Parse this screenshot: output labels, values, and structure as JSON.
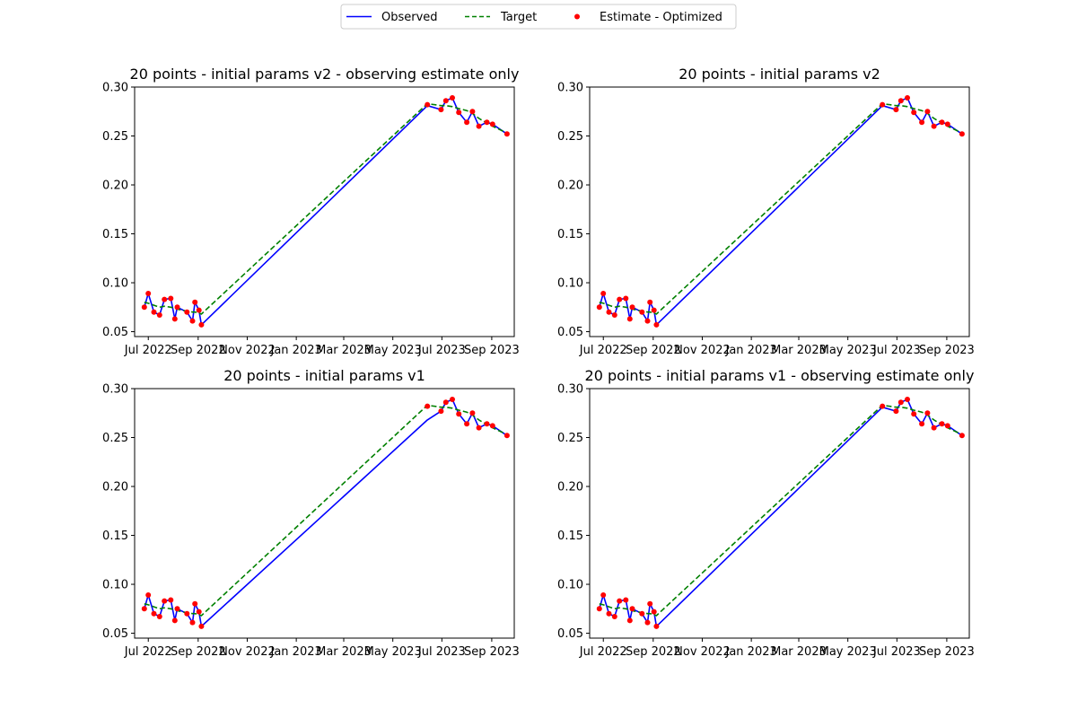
{
  "legend": {
    "location": "upper-center",
    "entries": [
      {
        "label": "Observed",
        "style": "solid-line",
        "color": "#0000ff"
      },
      {
        "label": "Target",
        "style": "dashed-line",
        "color": "#008000"
      },
      {
        "label": "Estimate - Optimized",
        "style": "dot",
        "color": "#ff0000"
      }
    ]
  },
  "chart_data": [
    {
      "type": "line",
      "title": "20 points - initial params v2 - observing estimate only",
      "xlabel": "",
      "ylabel": "",
      "ylim": [
        0.045,
        0.3
      ],
      "xlim": [
        "2022-06-14",
        "2023-09-29"
      ],
      "grid": false,
      "x_tick_labels": [
        "Jul 2022",
        "Sep 2022",
        "Nov 2022",
        "Jan 2023",
        "Mar 2023",
        "May 2023",
        "Jul 2023",
        "Sep 2023"
      ],
      "y_tick_labels": [
        "0.05",
        "0.10",
        "0.15",
        "0.20",
        "0.25",
        "0.30"
      ],
      "x": [
        "2022-06-26",
        "2022-07-01",
        "2022-07-08",
        "2022-07-15",
        "2022-07-21",
        "2022-07-29",
        "2022-08-03",
        "2022-08-06",
        "2022-08-18",
        "2022-08-25",
        "2022-08-28",
        "2022-09-02",
        "2022-09-05",
        "2023-06-13",
        "2023-06-30",
        "2023-07-06",
        "2023-07-14",
        "2023-07-22",
        "2023-08-01",
        "2023-08-08",
        "2023-08-16",
        "2023-08-26",
        "2023-09-02",
        "2023-09-20"
      ],
      "series": [
        {
          "name": "Observed",
          "color": "#0000ff",
          "values": [
            0.075,
            0.089,
            0.07,
            0.067,
            0.083,
            0.084,
            0.063,
            0.075,
            0.07,
            0.061,
            0.08,
            0.072,
            0.057,
            0.281,
            0.277,
            0.286,
            0.289,
            0.274,
            0.264,
            0.275,
            0.26,
            0.264,
            0.262,
            0.252
          ]
        },
        {
          "name": "Target",
          "color": "#008000",
          "values": [
            0.08,
            0.079,
            0.077,
            0.075,
            0.076,
            0.075,
            0.074,
            0.073,
            0.071,
            0.07,
            0.07,
            0.069,
            0.068,
            0.283,
            0.281,
            0.281,
            0.28,
            0.278,
            0.276,
            0.273,
            0.268,
            0.263,
            0.26,
            0.253
          ]
        },
        {
          "name": "Estimate - Optimized",
          "color": "#ff0000",
          "values": [
            0.075,
            0.089,
            0.07,
            0.067,
            0.083,
            0.084,
            0.063,
            0.075,
            0.07,
            0.061,
            0.08,
            0.072,
            0.057,
            0.282,
            0.277,
            0.286,
            0.289,
            0.274,
            0.264,
            0.275,
            0.26,
            0.264,
            0.262,
            0.252
          ]
        }
      ]
    },
    {
      "type": "line",
      "title": "20 points - initial params v2",
      "xlabel": "",
      "ylabel": "",
      "ylim": [
        0.045,
        0.3
      ],
      "xlim": [
        "2022-06-14",
        "2023-09-29"
      ],
      "grid": false,
      "x_tick_labels": [
        "Jul 2022",
        "Sep 2022",
        "Nov 2022",
        "Jan 2023",
        "Mar 2023",
        "May 2023",
        "Jul 2023",
        "Sep 2023"
      ],
      "y_tick_labels": [
        "0.05",
        "0.10",
        "0.15",
        "0.20",
        "0.25",
        "0.30"
      ],
      "x": [
        "2022-06-26",
        "2022-07-01",
        "2022-07-08",
        "2022-07-15",
        "2022-07-21",
        "2022-07-29",
        "2022-08-03",
        "2022-08-06",
        "2022-08-18",
        "2022-08-25",
        "2022-08-28",
        "2022-09-02",
        "2022-09-05",
        "2023-06-13",
        "2023-06-30",
        "2023-07-06",
        "2023-07-14",
        "2023-07-22",
        "2023-08-01",
        "2023-08-08",
        "2023-08-16",
        "2023-08-26",
        "2023-09-02",
        "2023-09-20"
      ],
      "series": [
        {
          "name": "Observed",
          "color": "#0000ff",
          "values": [
            0.075,
            0.089,
            0.07,
            0.067,
            0.083,
            0.084,
            0.063,
            0.075,
            0.07,
            0.061,
            0.08,
            0.072,
            0.057,
            0.281,
            0.277,
            0.286,
            0.289,
            0.274,
            0.264,
            0.275,
            0.26,
            0.264,
            0.262,
            0.252
          ]
        },
        {
          "name": "Target",
          "color": "#008000",
          "values": [
            0.08,
            0.079,
            0.077,
            0.075,
            0.076,
            0.075,
            0.074,
            0.073,
            0.071,
            0.07,
            0.07,
            0.069,
            0.068,
            0.283,
            0.281,
            0.281,
            0.28,
            0.278,
            0.276,
            0.273,
            0.268,
            0.263,
            0.26,
            0.253
          ]
        },
        {
          "name": "Estimate - Optimized",
          "color": "#ff0000",
          "values": [
            0.075,
            0.089,
            0.07,
            0.067,
            0.083,
            0.084,
            0.063,
            0.075,
            0.07,
            0.061,
            0.08,
            0.072,
            0.057,
            0.282,
            0.277,
            0.286,
            0.289,
            0.274,
            0.264,
            0.275,
            0.26,
            0.264,
            0.262,
            0.252
          ]
        }
      ]
    },
    {
      "type": "line",
      "title": "20 points - initial params v1",
      "xlabel": "",
      "ylabel": "",
      "ylim": [
        0.045,
        0.3
      ],
      "xlim": [
        "2022-06-14",
        "2023-09-29"
      ],
      "grid": false,
      "x_tick_labels": [
        "Jul 2022",
        "Sep 2022",
        "Nov 2022",
        "Jan 2023",
        "Mar 2023",
        "May 2023",
        "Jul 2023",
        "Sep 2023"
      ],
      "y_tick_labels": [
        "0.05",
        "0.10",
        "0.15",
        "0.20",
        "0.25",
        "0.30"
      ],
      "x": [
        "2022-06-26",
        "2022-07-01",
        "2022-07-08",
        "2022-07-15",
        "2022-07-21",
        "2022-07-29",
        "2022-08-03",
        "2022-08-06",
        "2022-08-18",
        "2022-08-25",
        "2022-08-28",
        "2022-09-02",
        "2022-09-05",
        "2023-06-13",
        "2023-06-30",
        "2023-07-06",
        "2023-07-14",
        "2023-07-22",
        "2023-08-01",
        "2023-08-08",
        "2023-08-16",
        "2023-08-26",
        "2023-09-02",
        "2023-09-20"
      ],
      "series": [
        {
          "name": "Observed",
          "color": "#0000ff",
          "values": [
            0.075,
            0.089,
            0.07,
            0.067,
            0.083,
            0.084,
            0.063,
            0.075,
            0.07,
            0.061,
            0.08,
            0.072,
            0.057,
            0.268,
            0.277,
            0.286,
            0.289,
            0.274,
            0.264,
            0.275,
            0.26,
            0.264,
            0.262,
            0.252
          ]
        },
        {
          "name": "Target",
          "color": "#008000",
          "values": [
            0.08,
            0.079,
            0.077,
            0.075,
            0.076,
            0.075,
            0.074,
            0.073,
            0.071,
            0.07,
            0.07,
            0.069,
            0.068,
            0.283,
            0.281,
            0.281,
            0.28,
            0.278,
            0.276,
            0.273,
            0.268,
            0.263,
            0.26,
            0.253
          ]
        },
        {
          "name": "Estimate - Optimized",
          "color": "#ff0000",
          "values": [
            0.075,
            0.089,
            0.07,
            0.067,
            0.083,
            0.084,
            0.063,
            0.075,
            0.07,
            0.061,
            0.08,
            0.072,
            0.057,
            0.282,
            0.277,
            0.286,
            0.289,
            0.274,
            0.264,
            0.275,
            0.26,
            0.264,
            0.262,
            0.252
          ]
        }
      ]
    },
    {
      "type": "line",
      "title": "20 points - initial params v1 - observing estimate only",
      "xlabel": "",
      "ylabel": "",
      "ylim": [
        0.045,
        0.3
      ],
      "xlim": [
        "2022-06-14",
        "2023-09-29"
      ],
      "grid": false,
      "x_tick_labels": [
        "Jul 2022",
        "Sep 2022",
        "Nov 2022",
        "Jan 2023",
        "Mar 2023",
        "May 2023",
        "Jul 2023",
        "Sep 2023"
      ],
      "y_tick_labels": [
        "0.05",
        "0.10",
        "0.15",
        "0.20",
        "0.25",
        "0.30"
      ],
      "x": [
        "2022-06-26",
        "2022-07-01",
        "2022-07-08",
        "2022-07-15",
        "2022-07-21",
        "2022-07-29",
        "2022-08-03",
        "2022-08-06",
        "2022-08-18",
        "2022-08-25",
        "2022-08-28",
        "2022-09-02",
        "2022-09-05",
        "2023-06-13",
        "2023-06-30",
        "2023-07-06",
        "2023-07-14",
        "2023-07-22",
        "2023-08-01",
        "2023-08-08",
        "2023-08-16",
        "2023-08-26",
        "2023-09-02",
        "2023-09-20"
      ],
      "series": [
        {
          "name": "Observed",
          "color": "#0000ff",
          "values": [
            0.075,
            0.089,
            0.07,
            0.067,
            0.083,
            0.084,
            0.063,
            0.075,
            0.07,
            0.061,
            0.08,
            0.072,
            0.057,
            0.281,
            0.277,
            0.286,
            0.289,
            0.274,
            0.264,
            0.275,
            0.26,
            0.264,
            0.262,
            0.252
          ]
        },
        {
          "name": "Target",
          "color": "#008000",
          "values": [
            0.08,
            0.079,
            0.077,
            0.075,
            0.076,
            0.075,
            0.074,
            0.073,
            0.071,
            0.07,
            0.07,
            0.069,
            0.068,
            0.283,
            0.281,
            0.281,
            0.28,
            0.278,
            0.276,
            0.273,
            0.268,
            0.263,
            0.26,
            0.253
          ]
        },
        {
          "name": "Estimate - Optimized",
          "color": "#ff0000",
          "values": [
            0.075,
            0.089,
            0.07,
            0.067,
            0.083,
            0.084,
            0.063,
            0.075,
            0.07,
            0.061,
            0.08,
            0.072,
            0.057,
            0.282,
            0.277,
            0.286,
            0.289,
            0.274,
            0.264,
            0.275,
            0.26,
            0.264,
            0.262,
            0.252
          ]
        }
      ]
    }
  ]
}
